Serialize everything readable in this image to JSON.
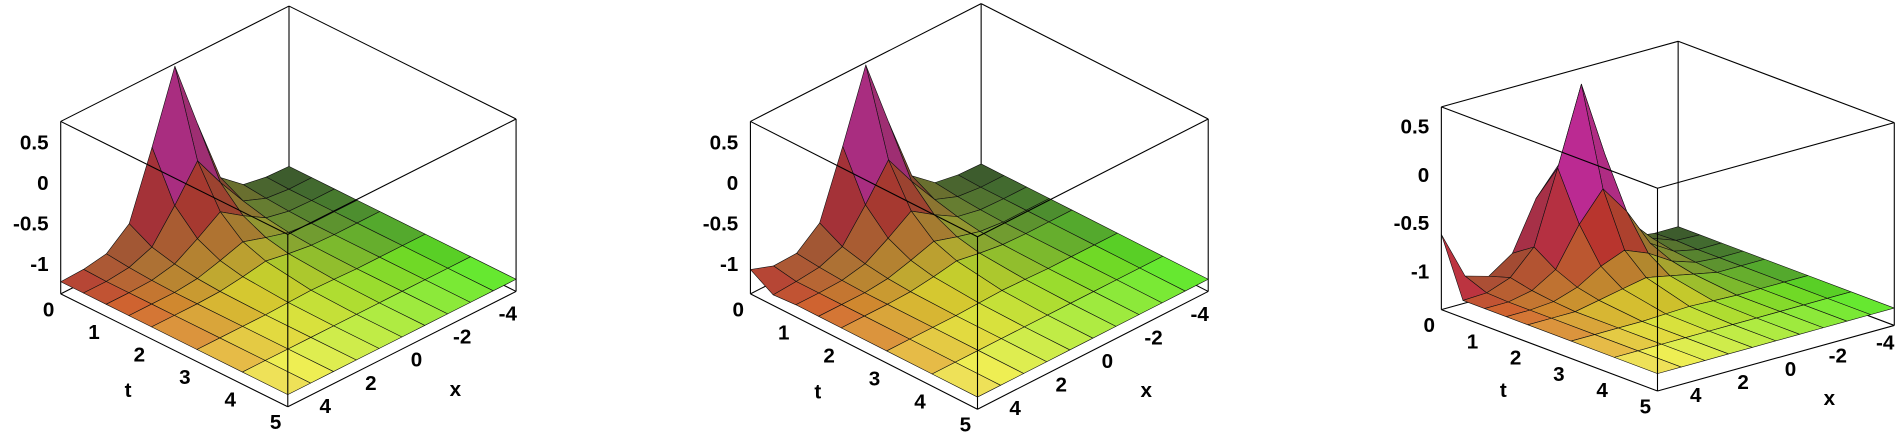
{
  "chart_data": [
    {
      "type": "surface",
      "xlabel": "x",
      "tlabel": "t",
      "t": [
        0,
        0.5,
        1,
        1.5,
        2,
        3,
        4,
        5
      ],
      "x": [
        -5,
        -4,
        -3,
        -2,
        -1,
        0,
        1,
        2,
        3,
        4,
        5
      ],
      "z": [
        [
          -1.2,
          -1.19,
          -1.14,
          -0.91,
          -0.11,
          0.75,
          -0.11,
          -0.91,
          -1.14,
          -1.19,
          -1.2
        ],
        [
          -1.2,
          -1.2,
          -1.17,
          -1.06,
          -0.69,
          -0.28,
          -0.69,
          -1.06,
          -1.17,
          -1.2,
          -1.2
        ],
        [
          -1.2,
          -1.2,
          -1.19,
          -1.13,
          -0.96,
          -0.77,
          -0.96,
          -1.13,
          -1.19,
          -1.2,
          -1.2
        ],
        [
          -1.2,
          -1.2,
          -1.2,
          -1.17,
          -1.09,
          -1.0,
          -1.09,
          -1.17,
          -1.2,
          -1.2,
          -1.2
        ],
        [
          -1.2,
          -1.2,
          -1.2,
          -1.19,
          -1.15,
          -1.1,
          -1.15,
          -1.19,
          -1.2,
          -1.2,
          -1.2
        ],
        [
          -1.2,
          -1.2,
          -1.2,
          -1.2,
          -1.19,
          -1.18,
          -1.19,
          -1.2,
          -1.2,
          -1.2,
          -1.2
        ],
        [
          -1.2,
          -1.2,
          -1.2,
          -1.2,
          -1.2,
          -1.2,
          -1.2,
          -1.2,
          -1.2,
          -1.2,
          -1.2
        ],
        [
          -1.2,
          -1.2,
          -1.2,
          -1.2,
          -1.2,
          -1.2,
          -1.2,
          -1.2,
          -1.2,
          -1.2,
          -1.2
        ]
      ],
      "zlim": [
        -1.35,
        0.78
      ],
      "zticks": [
        0.5,
        0,
        -0.5,
        -1
      ],
      "tlim": [
        0,
        5
      ],
      "tticks": [
        0,
        1,
        2,
        3,
        4,
        5
      ],
      "xlim": [
        -5,
        5
      ],
      "xticks": [
        4,
        2,
        0,
        -2,
        -4
      ]
    },
    {
      "type": "surface",
      "xlabel": "x",
      "tlabel": "t",
      "t": [
        0,
        0.5,
        1,
        1.5,
        2,
        3,
        4,
        5
      ],
      "x": [
        -5,
        -4,
        -3,
        -2,
        -1,
        0,
        1,
        2,
        3,
        4,
        5
      ],
      "z": [
        [
          -1.2,
          -1.19,
          -1.14,
          -0.91,
          -0.11,
          0.75,
          -0.11,
          -0.91,
          -1.14,
          -1.15,
          -1.05
        ],
        [
          -1.2,
          -1.2,
          -1.17,
          -1.06,
          -0.69,
          -0.28,
          -0.69,
          -1.06,
          -1.17,
          -1.2,
          -1.22
        ],
        [
          -1.2,
          -1.2,
          -1.19,
          -1.13,
          -0.96,
          -0.77,
          -0.96,
          -1.13,
          -1.19,
          -1.2,
          -1.2
        ],
        [
          -1.2,
          -1.2,
          -1.2,
          -1.17,
          -1.09,
          -1.0,
          -1.09,
          -1.17,
          -1.2,
          -1.2,
          -1.2
        ],
        [
          -1.2,
          -1.2,
          -1.2,
          -1.19,
          -1.15,
          -1.1,
          -1.15,
          -1.19,
          -1.2,
          -1.2,
          -1.2
        ],
        [
          -1.2,
          -1.2,
          -1.2,
          -1.2,
          -1.19,
          -1.18,
          -1.19,
          -1.2,
          -1.2,
          -1.2,
          -1.2
        ],
        [
          -1.2,
          -1.2,
          -1.2,
          -1.2,
          -1.2,
          -1.2,
          -1.2,
          -1.2,
          -1.2,
          -1.2,
          -1.2
        ],
        [
          -1.2,
          -1.2,
          -1.2,
          -1.2,
          -1.2,
          -1.2,
          -1.2,
          -1.2,
          -1.2,
          -1.2,
          -1.2
        ]
      ],
      "zlim": [
        -1.35,
        0.78
      ],
      "zticks": [
        0.5,
        0,
        -0.5,
        -1
      ],
      "tlim": [
        0,
        5
      ],
      "tticks": [
        0,
        1,
        2,
        3,
        4,
        5
      ],
      "xlim": [
        -5,
        5
      ],
      "xticks": [
        4,
        2,
        0,
        -2,
        -4
      ]
    },
    {
      "type": "surface",
      "xlabel": "x",
      "tlabel": "t",
      "t": [
        0,
        0.5,
        1,
        1.5,
        2,
        3,
        4,
        5
      ],
      "x": [
        -5,
        -4,
        -3,
        -2,
        -1,
        0,
        1,
        2,
        3,
        4,
        5
      ],
      "z": [
        [
          -1.2,
          -1.2,
          -1.17,
          -1.0,
          -0.5,
          -0.2,
          -0.5,
          -1.0,
          -1.17,
          -1.1,
          -0.6
        ],
        [
          -1.2,
          -1.19,
          -1.1,
          -0.85,
          -0.1,
          0.7,
          -0.1,
          -0.85,
          -1.1,
          -1.19,
          -1.2
        ],
        [
          -1.2,
          -1.2,
          -1.15,
          -1.0,
          -0.6,
          -0.3,
          -0.6,
          -1.0,
          -1.15,
          -1.2,
          -1.2
        ],
        [
          -1.2,
          -1.2,
          -1.18,
          -1.1,
          -0.95,
          -0.85,
          -0.95,
          -1.1,
          -1.18,
          -1.2,
          -1.2
        ],
        [
          -1.2,
          -1.2,
          -1.2,
          -1.15,
          -1.1,
          -1.05,
          -1.1,
          -1.15,
          -1.2,
          -1.2,
          -1.2
        ],
        [
          -1.2,
          -1.2,
          -1.2,
          -1.2,
          -1.19,
          -1.18,
          -1.19,
          -1.2,
          -1.2,
          -1.2,
          -1.2
        ],
        [
          -1.2,
          -1.2,
          -1.2,
          -1.2,
          -1.2,
          -1.2,
          -1.2,
          -1.2,
          -1.2,
          -1.2,
          -1.2
        ],
        [
          -1.2,
          -1.2,
          -1.2,
          -1.2,
          -1.2,
          -1.2,
          -1.2,
          -1.2,
          -1.2,
          -1.2,
          -1.2
        ]
      ],
      "zlim": [
        -1.38,
        0.72
      ],
      "zticks": [
        0.5,
        0,
        -0.5,
        -1
      ],
      "tlim": [
        0,
        5
      ],
      "tticks": [
        0,
        1,
        2,
        3,
        4,
        5
      ],
      "xlim": [
        -5,
        5
      ],
      "xticks": [
        4,
        2,
        0,
        -2,
        -4
      ]
    }
  ]
}
